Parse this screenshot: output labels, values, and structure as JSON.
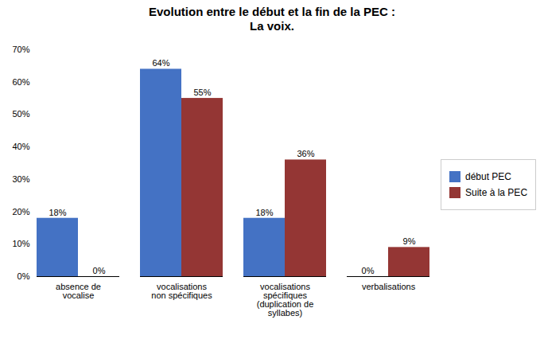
{
  "chart_data": {
    "type": "bar",
    "title": "Evolution entre le début et la fin de la PEC :\nLa voix.",
    "categories": [
      "absence de\nvocalise",
      "vocalisations\nnon spécifiques",
      "vocalisations\nspécifiques\n(duplication de\nsyllabes)",
      "verbalisations"
    ],
    "series": [
      {
        "name": "début PEC",
        "color": "#4472C4",
        "values": [
          18,
          64,
          18,
          0
        ],
        "value_labels": [
          "18%",
          "64%",
          "18%",
          "0%"
        ]
      },
      {
        "name": "Suite à la PEC",
        "color": "#943634",
        "values": [
          0,
          55,
          36,
          9
        ],
        "value_labels": [
          "0%",
          "55%",
          "36%",
          "9%"
        ]
      }
    ],
    "ylim": [
      0,
      70
    ],
    "yticks": [
      {
        "value": 0,
        "label": "0%"
      },
      {
        "value": 10,
        "label": "10%"
      },
      {
        "value": 20,
        "label": "20%"
      },
      {
        "value": 30,
        "label": "30%"
      },
      {
        "value": 40,
        "label": "40%"
      },
      {
        "value": 50,
        "label": "50%"
      },
      {
        "value": 60,
        "label": "60%"
      },
      {
        "value": 70,
        "label": "70%"
      }
    ],
    "grid": false,
    "legend": "right",
    "data_labels": true
  }
}
